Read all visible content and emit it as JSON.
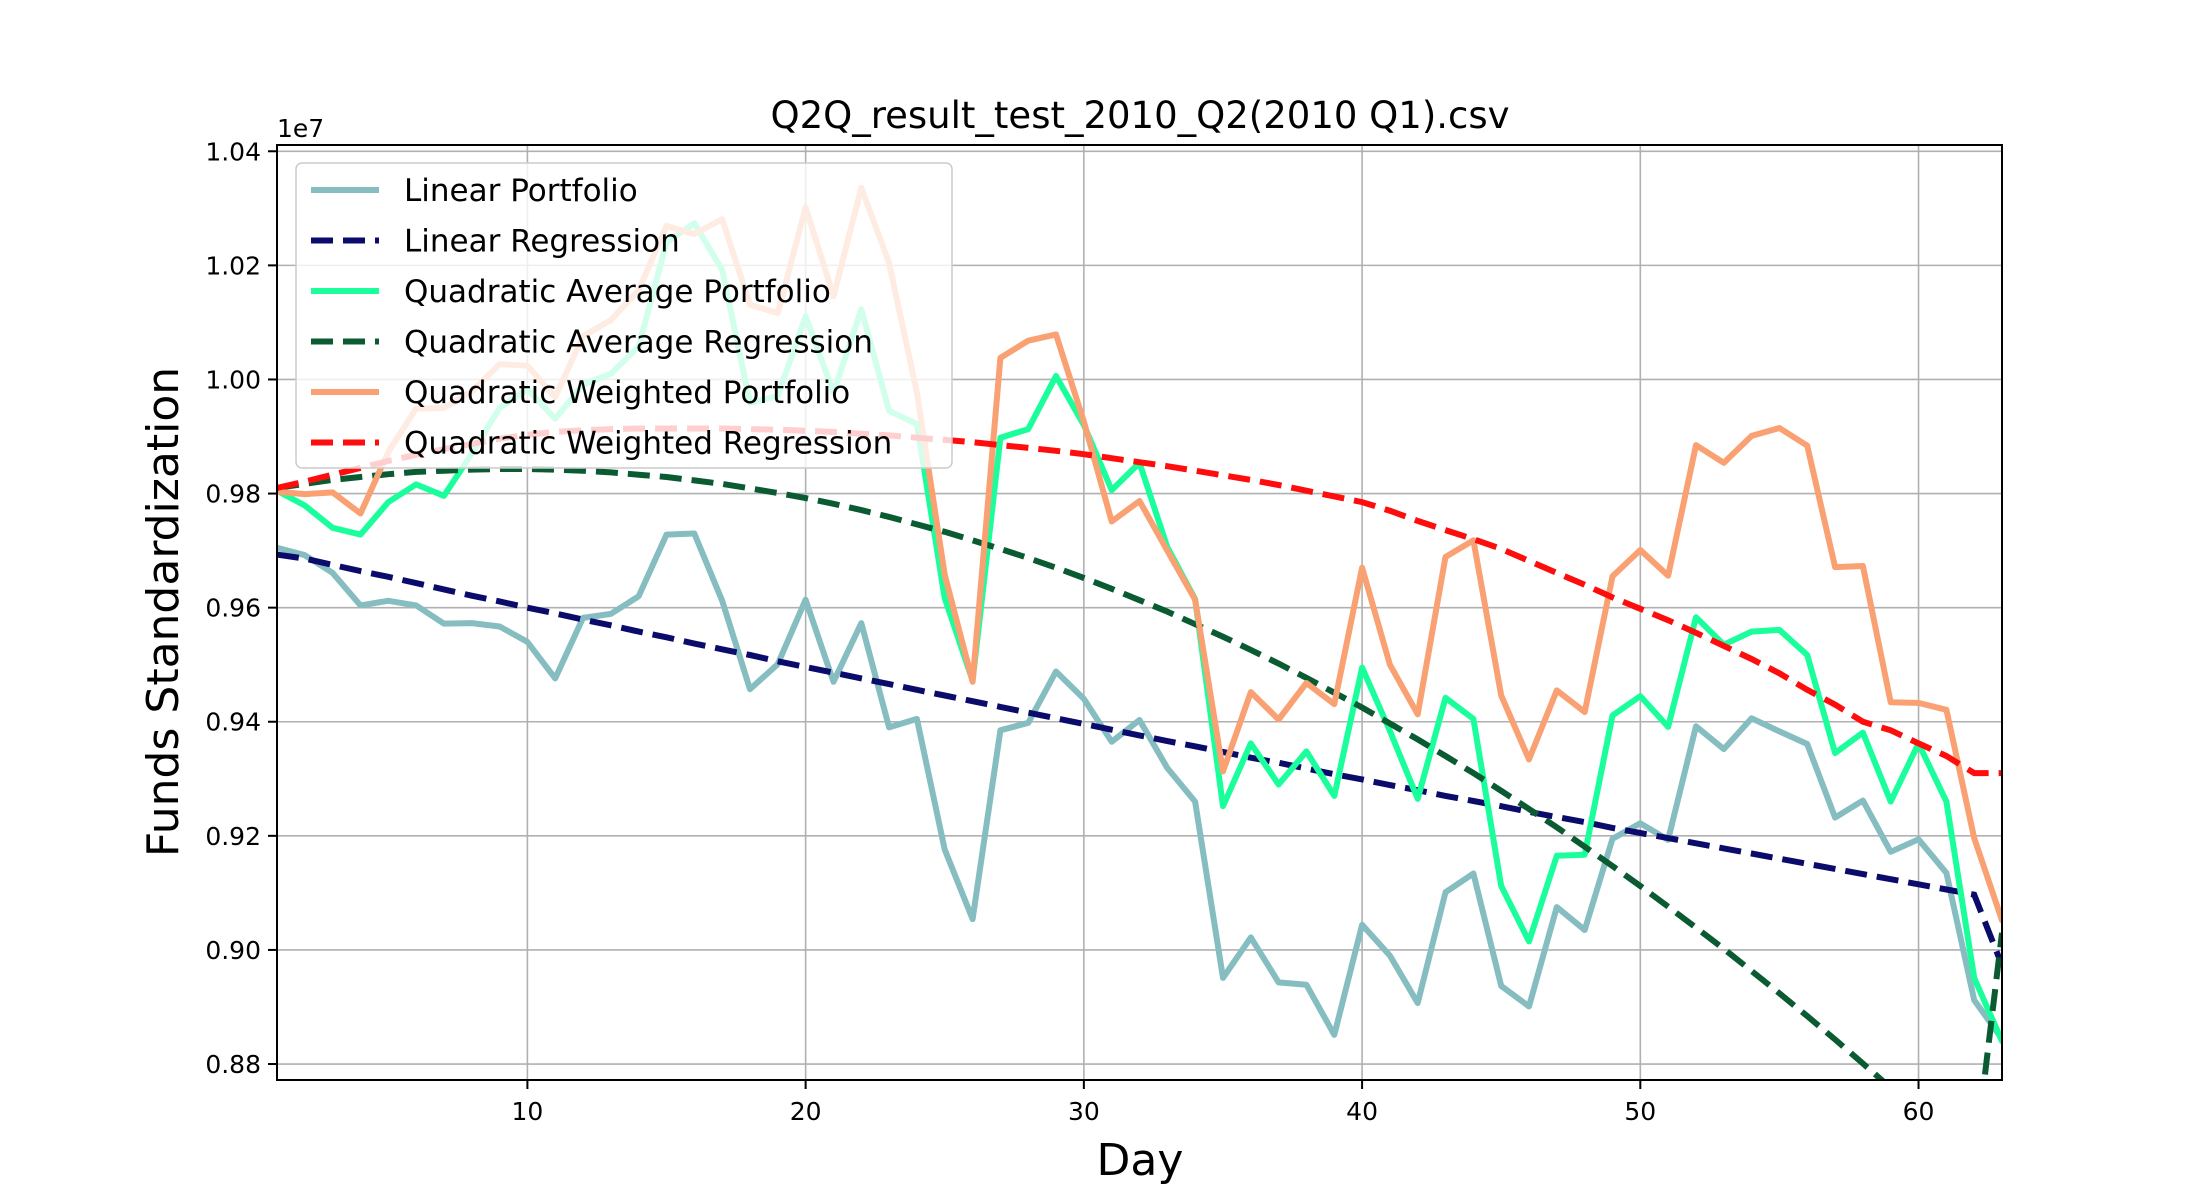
{
  "chart_data": {
    "type": "line",
    "title": "Q2Q_result_test_2010_Q2(2010 Q1).csv",
    "xlabel": "Day",
    "ylabel": "Funds Standardization",
    "y_offset_label": "1e7",
    "xlim": [
      1,
      63
    ],
    "ylim": [
      0.8772,
      1.0411
    ],
    "x_ticks": [
      10,
      20,
      30,
      40,
      50,
      60
    ],
    "y_ticks": [
      0.88,
      0.9,
      0.92,
      0.94,
      0.96,
      0.98,
      1.0,
      1.02,
      1.04
    ],
    "y_tick_labels": [
      "0.88",
      "0.90",
      "0.92",
      "0.94",
      "0.96",
      "0.98",
      "1.00",
      "1.02",
      "1.04"
    ],
    "grid": true,
    "legend_position": "top-left",
    "x": [
      1,
      2,
      3,
      4,
      5,
      6,
      7,
      8,
      9,
      10,
      11,
      12,
      13,
      14,
      15,
      16,
      17,
      18,
      19,
      20,
      21,
      22,
      23,
      24,
      25,
      26,
      27,
      28,
      29,
      30,
      31,
      32,
      33,
      34,
      35,
      36,
      37,
      38,
      39,
      40,
      41,
      42,
      43,
      44,
      45,
      46,
      47,
      48,
      49,
      50,
      51,
      52,
      53,
      54,
      55,
      56,
      57,
      58,
      59,
      60,
      61,
      62,
      63
    ],
    "series": [
      {
        "name": "Linear Portfolio",
        "color": "#85bdc0",
        "style": "solid",
        "values": [
          0.9705,
          0.9692,
          0.9661,
          0.9604,
          0.9612,
          0.9604,
          0.9572,
          0.9573,
          0.9567,
          0.954,
          0.9476,
          0.9582,
          0.9589,
          0.962,
          0.9728,
          0.973,
          0.9612,
          0.9457,
          0.9501,
          0.9614,
          0.947,
          0.9573,
          0.939,
          0.9405,
          0.9176,
          0.9054,
          0.9385,
          0.9398,
          0.9488,
          0.944,
          0.9365,
          0.9403,
          0.9319,
          0.926,
          0.8951,
          0.9022,
          0.8943,
          0.8939,
          0.8851,
          0.9044,
          0.899,
          0.8907,
          0.9101,
          0.9134,
          0.8937,
          0.8901,
          0.9075,
          0.9035,
          0.9195,
          0.9222,
          0.9193,
          0.9392,
          0.9352,
          0.9406,
          0.9383,
          0.9361,
          0.9232,
          0.9262,
          0.9172,
          0.9194,
          0.9135,
          0.8912,
          0.8844
        ]
      },
      {
        "name": "Linear Regression",
        "color": "#0b0b6b",
        "style": "dashed",
        "values": [
          0.9693,
          0.9686,
          0.9675,
          0.9664,
          0.9654,
          0.9643,
          0.9632,
          0.9621,
          0.9611,
          0.96,
          0.959,
          0.9579,
          0.9569,
          0.9558,
          0.9548,
          0.9537,
          0.9527,
          0.9517,
          0.9506,
          0.9496,
          0.9486,
          0.9476,
          0.9466,
          0.9456,
          0.9446,
          0.9436,
          0.9426,
          0.9416,
          0.9406,
          0.9396,
          0.9386,
          0.9376,
          0.9366,
          0.9357,
          0.9347,
          0.9337,
          0.9328,
          0.9318,
          0.9308,
          0.9299,
          0.9289,
          0.928,
          0.927,
          0.9261,
          0.9252,
          0.9242,
          0.9233,
          0.9224,
          0.9214,
          0.9205,
          0.9196,
          0.9187,
          0.9178,
          0.9169,
          0.916,
          0.9151,
          0.9142,
          0.9133,
          0.9124,
          0.9115,
          0.9106,
          0.9097,
          0.8973
        ]
      },
      {
        "name": "Quadratic Average Portfolio",
        "color": "#1aff9c",
        "style": "solid",
        "values": [
          0.9805,
          0.9779,
          0.974,
          0.9728,
          0.9785,
          0.9816,
          0.9796,
          0.987,
          0.995,
          0.9983,
          0.9931,
          0.9991,
          1.001,
          1.0058,
          1.024,
          1.0274,
          1.0192,
          0.9959,
          0.9971,
          1.0111,
          0.9977,
          1.0123,
          0.9945,
          0.9922,
          0.9617,
          0.9472,
          0.9898,
          0.9913,
          1.0006,
          0.992,
          0.9806,
          0.9854,
          0.9706,
          0.9615,
          0.9252,
          0.9362,
          0.929,
          0.9348,
          0.927,
          0.9495,
          0.9384,
          0.9265,
          0.9442,
          0.9405,
          0.9112,
          0.9015,
          0.9165,
          0.9167,
          0.9411,
          0.9445,
          0.9391,
          0.9583,
          0.9535,
          0.9558,
          0.9561,
          0.9517,
          0.9345,
          0.9381,
          0.926,
          0.9362,
          0.926,
          0.8951,
          0.884
        ]
      },
      {
        "name": "Quadratic Average Regression",
        "color": "#0b5b32",
        "style": "dashed",
        "values": [
          0.981,
          0.9817,
          0.9824,
          0.9829,
          0.9834,
          0.9838,
          0.984,
          0.9842,
          0.9843,
          0.9843,
          0.9842,
          0.984,
          0.9837,
          0.9833,
          0.9829,
          0.9823,
          0.9817,
          0.9809,
          0.9801,
          0.9792,
          0.9782,
          0.9771,
          0.9759,
          0.9746,
          0.9733,
          0.9718,
          0.9703,
          0.9687,
          0.967,
          0.9652,
          0.9633,
          0.9613,
          0.9593,
          0.9571,
          0.9549,
          0.9526,
          0.9502,
          0.9477,
          0.9451,
          0.9425,
          0.9397,
          0.9369,
          0.934,
          0.931,
          0.9279,
          0.9247,
          0.9215,
          0.9181,
          0.9147,
          0.9112,
          0.9076,
          0.9039,
          0.9002,
          0.8963,
          0.8924,
          0.8884,
          0.8843,
          0.8801,
          0.8758,
          0.8715,
          0.867,
          0.8625,
          0.903
        ]
      },
      {
        "name": "Quadratic Weighted Portfolio",
        "color": "#f9a173",
        "style": "solid",
        "values": [
          0.9803,
          0.9799,
          0.9802,
          0.9765,
          0.9873,
          0.9949,
          0.995,
          0.9979,
          1.0027,
          1.0024,
          0.9969,
          1.0076,
          1.0104,
          1.0157,
          1.0269,
          1.0255,
          1.0281,
          1.0131,
          1.0116,
          1.0302,
          1.0146,
          1.0336,
          1.0204,
          0.9977,
          0.9658,
          0.947,
          1.0038,
          1.0068,
          1.0079,
          0.9926,
          0.9751,
          0.9787,
          0.97,
          0.9614,
          0.9313,
          0.9452,
          0.9404,
          0.9468,
          0.9431,
          0.967,
          0.95,
          0.9413,
          0.9689,
          0.9718,
          0.9446,
          0.9334,
          0.9455,
          0.9417,
          0.9655,
          0.9701,
          0.9656,
          0.9885,
          0.9854,
          0.9901,
          0.9915,
          0.9884,
          0.9671,
          0.9673,
          0.9434,
          0.9433,
          0.9421,
          0.9196,
          0.9052
        ]
      },
      {
        "name": "Quadratic Weighted Regression",
        "color": "#ff0d0d",
        "style": "dashed",
        "values": [
          0.981,
          0.9821,
          0.9833,
          0.9845,
          0.9857,
          0.9868,
          0.9878,
          0.9887,
          0.9896,
          0.9903,
          0.9908,
          0.9911,
          0.9913,
          0.9914,
          0.9914,
          0.9914,
          0.9914,
          0.9913,
          0.9912,
          0.991,
          0.9908,
          0.9905,
          0.9902,
          0.9898,
          0.9894,
          0.989,
          0.9885,
          0.988,
          0.9875,
          0.9869,
          0.9862,
          0.9855,
          0.9848,
          0.984,
          0.9832,
          0.9824,
          0.9815,
          0.9805,
          0.9795,
          0.9785,
          0.977,
          0.9752,
          0.9736,
          0.972,
          0.9703,
          0.9682,
          0.9661,
          0.964,
          0.9618,
          0.9598,
          0.9578,
          0.9556,
          0.9533,
          0.951,
          0.9485,
          0.9456,
          0.943,
          0.94,
          0.9385,
          0.9362,
          0.934,
          0.931,
          0.931
        ]
      }
    ]
  }
}
